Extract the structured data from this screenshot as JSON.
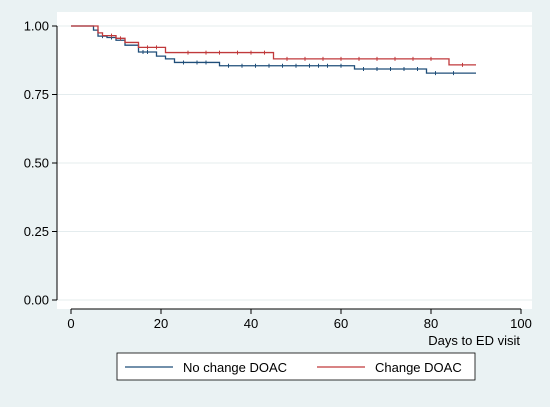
{
  "chart_data": {
    "type": "line",
    "subtype": "kaplan-meier-step",
    "title": "",
    "xlabel": "Days to ED visit",
    "ylabel": "",
    "xlim": [
      0,
      100
    ],
    "ylim": [
      0,
      1
    ],
    "x_ticks": [
      0,
      20,
      40,
      60,
      80,
      100
    ],
    "y_ticks": [
      0,
      0.25,
      0.5,
      0.75,
      1
    ],
    "x_tick_labels": [
      "0",
      "20",
      "40",
      "60",
      "80",
      "100"
    ],
    "y_tick_labels": [
      "0.00",
      "0.25",
      "0.50",
      "0.75",
      "1.00"
    ],
    "grid": "horizontal",
    "legend_position": "bottom",
    "series": [
      {
        "name": "No change DOAC",
        "color": "#1f4e79",
        "steps": [
          [
            0,
            1.0
          ],
          [
            5,
            0.985
          ],
          [
            6,
            0.963
          ],
          [
            8,
            0.958
          ],
          [
            10,
            0.948
          ],
          [
            12,
            0.93
          ],
          [
            15,
            0.905
          ],
          [
            19,
            0.89
          ],
          [
            21,
            0.88
          ],
          [
            23,
            0.867
          ],
          [
            33,
            0.855
          ],
          [
            63,
            0.843
          ],
          [
            79,
            0.828
          ],
          [
            90,
            0.828
          ]
        ],
        "censor_x": [
          7,
          9,
          16,
          17,
          25,
          28,
          30,
          35,
          38,
          41,
          44,
          47,
          50,
          53,
          55,
          57,
          60,
          65,
          68,
          71,
          74,
          77,
          81,
          85
        ]
      },
      {
        "name": "Change DOAC",
        "color": "#c0393b",
        "steps": [
          [
            0,
            1.0
          ],
          [
            6,
            0.975
          ],
          [
            7,
            0.965
          ],
          [
            10,
            0.955
          ],
          [
            12,
            0.94
          ],
          [
            15,
            0.922
          ],
          [
            21,
            0.903
          ],
          [
            45,
            0.88
          ],
          [
            84,
            0.858
          ],
          [
            90,
            0.858
          ]
        ],
        "censor_x": [
          9,
          11,
          17,
          19,
          26,
          30,
          33,
          37,
          40,
          43,
          48,
          52,
          56,
          60,
          64,
          68,
          72,
          76,
          80,
          87
        ]
      }
    ]
  }
}
